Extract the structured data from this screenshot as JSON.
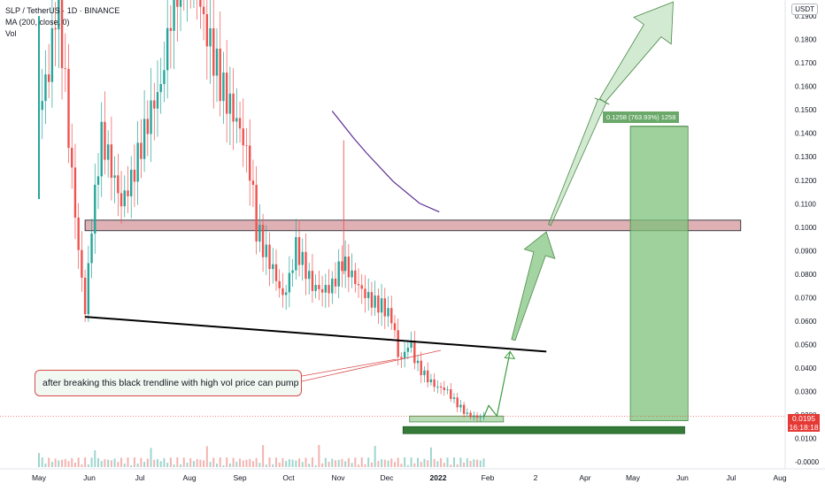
{
  "chart_data": {
    "type": "candlestick",
    "title": "SLP / TetherUS",
    "exchange": "BINANCE",
    "indicators": [
      "MA (200, close, 0)",
      "Vol"
    ],
    "currency_badge": "USDT",
    "y_tick_labels": [
      "0.1900",
      "0.1800",
      "0.1700",
      "0.1600",
      "0.1500",
      "0.1400",
      "0.1300",
      "0.1200",
      "0.1100",
      "0.1000",
      "0.0900",
      "0.0800",
      "0.0700",
      "0.0600",
      "0.0500",
      "0.0400",
      "0.0300",
      "0.0200",
      "0.0100",
      "-0.0000"
    ],
    "ylim": [
      -0.0,
      0.196
    ],
    "x_tick_labels": [
      "May",
      "Jun",
      "Jul",
      "Aug",
      "Sep",
      "Oct",
      "Nov",
      "Dec",
      "2022",
      "Feb",
      "2",
      "Apr",
      "May",
      "Jun",
      "Jul",
      "Aug"
    ],
    "current_price": "0.0195",
    "countdown": "16:18:18",
    "annotation": "after breaking this black trendline with high vol price can pump",
    "measure_label": "0.1258 (763.93%) 1258",
    "resistance_zone": [
      0.0985,
      0.103
    ],
    "accumulation_zone": [
      0.017,
      0.0195
    ],
    "lower_zone": [
      0.012,
      0.015
    ],
    "projection_box": [
      0.0175,
      0.143
    ],
    "trendline": [
      [
        "2021-05-29",
        0.0618
      ],
      [
        "2022-03-05",
        0.047
      ]
    ],
    "close_path": [
      [
        "2021-05-01",
        0.15
      ],
      [
        "2021-05-08",
        0.17
      ],
      [
        "2021-05-12",
        0.2
      ],
      [
        "2021-05-16",
        0.17
      ],
      [
        "2021-05-20",
        0.13
      ],
      [
        "2021-05-25",
        0.09
      ],
      [
        "2021-05-29",
        0.065
      ],
      [
        "2021-06-02",
        0.1
      ],
      [
        "2021-06-08",
        0.14
      ],
      [
        "2021-06-14",
        0.125
      ],
      [
        "2021-06-20",
        0.11
      ],
      [
        "2021-06-26",
        0.12
      ],
      [
        "2021-07-02",
        0.135
      ],
      [
        "2021-07-08",
        0.15
      ],
      [
        "2021-07-14",
        0.16
      ],
      [
        "2021-07-20",
        0.19
      ],
      [
        "2021-07-26",
        0.21
      ],
      [
        "2021-08-02",
        0.22
      ],
      [
        "2021-08-08",
        0.19
      ],
      [
        "2021-08-14",
        0.175
      ],
      [
        "2021-08-20",
        0.16
      ],
      [
        "2021-08-26",
        0.15
      ],
      [
        "2021-09-01",
        0.14
      ],
      [
        "2021-09-06",
        0.125
      ],
      [
        "2021-09-10",
        0.1
      ],
      [
        "2021-09-14",
        0.092
      ],
      [
        "2021-09-20",
        0.082
      ],
      [
        "2021-09-26",
        0.07
      ],
      [
        "2021-09-30",
        0.078
      ],
      [
        "2021-10-04",
        0.092
      ],
      [
        "2021-10-08",
        0.085
      ],
      [
        "2021-10-14",
        0.075
      ],
      [
        "2021-10-20",
        0.073
      ],
      [
        "2021-10-26",
        0.075
      ],
      [
        "2021-11-01",
        0.085
      ],
      [
        "2021-11-04",
        0.083
      ],
      [
        "2021-11-08",
        0.078
      ],
      [
        "2021-11-14",
        0.072
      ],
      [
        "2021-11-20",
        0.068
      ],
      [
        "2021-11-26",
        0.066
      ],
      [
        "2021-12-02",
        0.06
      ],
      [
        "2021-12-05",
        0.045
      ],
      [
        "2021-12-08",
        0.044
      ],
      [
        "2021-12-12",
        0.052
      ],
      [
        "2021-12-16",
        0.042
      ],
      [
        "2021-12-22",
        0.036
      ],
      [
        "2021-12-28",
        0.032
      ],
      [
        "2022-01-03",
        0.031
      ],
      [
        "2022-01-08",
        0.026
      ],
      [
        "2022-01-12",
        0.023
      ],
      [
        "2022-01-16",
        0.02
      ],
      [
        "2022-01-22",
        0.019
      ],
      [
        "2022-01-27",
        0.0195
      ]
    ],
    "ma200_path": [
      [
        "2021-10-26",
        0.1495
      ],
      [
        "2021-11-08",
        0.138
      ],
      [
        "2021-11-16",
        0.1315
      ],
      [
        "2021-12-02",
        0.1195
      ],
      [
        "2021-12-18",
        0.1102
      ],
      [
        "2021-12-30",
        0.1065
      ]
    ],
    "projection_arrows": [
      [
        [
          "2022-01-26",
          0.019
        ],
        [
          "2022-01-29",
          0.024
        ],
        [
          "2022-02-03",
          0.0195
        ],
        [
          "2022-02-11",
          0.047
        ]
      ],
      [
        [
          "2022-02-13",
          0.052
        ],
        [
          "2022-03-05",
          0.098
        ]
      ],
      [
        [
          "2022-03-07",
          0.101
        ],
        [
          "2022-04-08",
          0.154
        ],
        [
          "2022-05-21",
          0.196
        ]
      ]
    ]
  }
}
